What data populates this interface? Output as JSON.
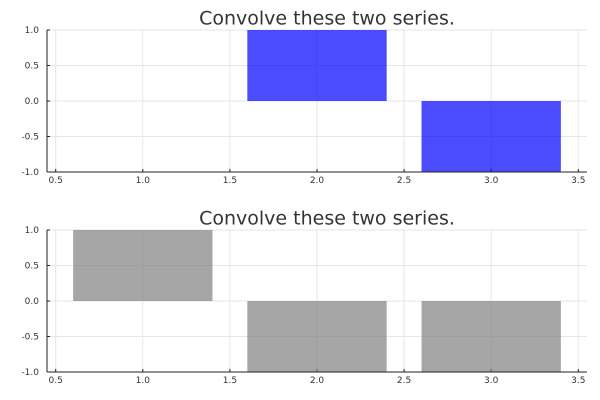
{
  "chart_data": [
    {
      "type": "bar",
      "title": "Convolve these two series.",
      "x": [
        1,
        2,
        3
      ],
      "values": [
        0,
        1,
        -1
      ],
      "bar_width": 0.8,
      "xlim": [
        0.45,
        3.55
      ],
      "ylim": [
        -1,
        1
      ],
      "xticks": [
        "0.5",
        "1.0",
        "1.5",
        "2.0",
        "2.5",
        "3.0",
        "3.5"
      ],
      "yticks": [
        "-1.0",
        "-0.5",
        "0.0",
        "0.5",
        "1.0"
      ],
      "color": "#0000ff",
      "opacity": 0.7,
      "grid": true,
      "legend": false
    },
    {
      "type": "bar",
      "title": "Convolve these two series.",
      "x": [
        1,
        2,
        3
      ],
      "values": [
        1,
        -1,
        -1
      ],
      "bar_width": 0.8,
      "xlim": [
        0.45,
        3.55
      ],
      "ylim": [
        -1,
        1
      ],
      "xticks": [
        "0.5",
        "1.0",
        "1.5",
        "2.0",
        "2.5",
        "3.0",
        "3.5"
      ],
      "yticks": [
        "-1.0",
        "-0.5",
        "0.0",
        "0.5",
        "1.0"
      ],
      "color": "#808080",
      "opacity": 0.7,
      "grid": true,
      "legend": false
    }
  ]
}
